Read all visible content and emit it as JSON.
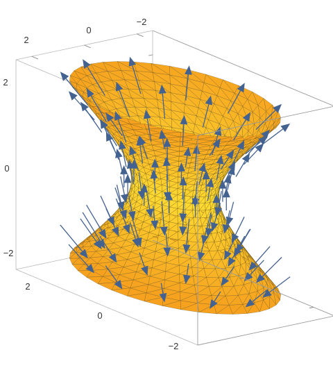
{
  "chart_data": {
    "type": "surface3d_with_vector_field",
    "title": "",
    "surface": {
      "kind": "hyperboloid of one sheet",
      "equation": "x^2 + y^2 - z^2 = 1",
      "waist_radius": 1,
      "z_range": [
        -2.2,
        2.2
      ],
      "fill_color_top": "#f6a21f",
      "fill_color_middle": "#ffe436",
      "mesh_color": "#5a4a1c"
    },
    "vector_field": {
      "arrow_color": "#44628f",
      "description": "vectors along the surface, pointing away from the waist"
    },
    "axes": {
      "x": {
        "range": [
          -2.6,
          2.6
        ],
        "ticks": [
          2,
          0,
          -2
        ],
        "tick_labels": [
          "2",
          "0",
          "−2"
        ]
      },
      "y": {
        "range": [
          -2.6,
          2.6
        ],
        "ticks": [
          2,
          0,
          -2
        ],
        "tick_labels": [
          "2",
          "0",
          "−2"
        ]
      },
      "z": {
        "range": [
          -2.6,
          2.6
        ],
        "ticks": [
          2,
          0,
          -2
        ],
        "tick_labels": [
          "2",
          "0",
          "−2"
        ]
      }
    },
    "box": true,
    "grid": false,
    "legend": "none"
  }
}
